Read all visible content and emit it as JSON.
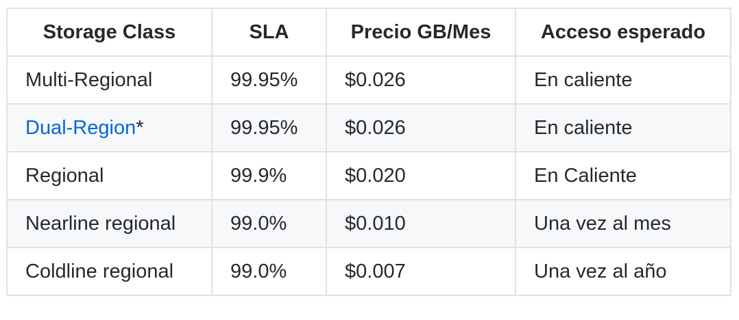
{
  "table": {
    "headers": [
      "Storage Class",
      "SLA",
      "Precio GB/Mes",
      "Acceso esperado"
    ],
    "rows": [
      {
        "storage_class": "Multi-Regional",
        "sla": "99.95%",
        "price": "$0.026",
        "access": "En caliente"
      },
      {
        "storage_class": "Dual-Region",
        "storage_class_suffix": "*",
        "storage_class_is_link": true,
        "sla": "99.95%",
        "price": "$0.026",
        "access": "En caliente"
      },
      {
        "storage_class": "Regional",
        "sla": "99.9%",
        "price": "$0.020",
        "access": "En Caliente"
      },
      {
        "storage_class": "Nearline regional",
        "sla": "99.0%",
        "price": "$0.010",
        "access": "Una vez al mes"
      },
      {
        "storage_class": "Coldline regional",
        "sla": "99.0%",
        "price": "$0.007",
        "access": "Una vez al año"
      }
    ]
  },
  "colors": {
    "text": "#24292e",
    "link": "#0366d6",
    "border": "#dfe2e5",
    "stripe": "#f6f8fa"
  }
}
